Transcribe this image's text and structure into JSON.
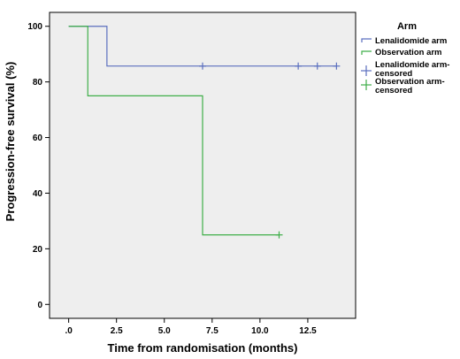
{
  "chart_data": {
    "type": "line",
    "step": true,
    "xlabel": "Time from randomisation (months)",
    "ylabel": "Progression-free survival (%)",
    "xlim": [
      -1,
      15
    ],
    "ylim": [
      -5,
      105
    ],
    "xticks": [
      0,
      2.5,
      5,
      7.5,
      10,
      12.5
    ],
    "xtick_labels": [
      ".0",
      "2.5",
      "5.0",
      "7.5",
      "10.0",
      "12.5"
    ],
    "yticks": [
      0,
      20,
      40,
      60,
      80,
      100
    ],
    "ytick_labels": [
      "0",
      "20",
      "40",
      "60",
      "80",
      "100"
    ],
    "grid": false,
    "legend_position": "right",
    "legend_title": "Arm",
    "legend_labels": {
      "lenalidomide": "Lenalidomide arm",
      "observation": "Observation arm",
      "lenalidomide_censored": [
        "Lenalidomide arm-",
        "censored"
      ],
      "observation_censored": [
        "Observation arm-",
        "censored"
      ]
    },
    "series": [
      {
        "name": "Lenalidomide arm",
        "color": "#5b6fbf",
        "x": [
          0,
          2,
          2,
          14
        ],
        "y": [
          100,
          100,
          85.7,
          85.7
        ],
        "censored": [
          [
            7,
            85.7
          ],
          [
            12,
            85.7
          ],
          [
            13,
            85.7
          ],
          [
            14,
            85.7
          ]
        ]
      },
      {
        "name": "Observation arm",
        "color": "#3fae49",
        "x": [
          0,
          1,
          1,
          7,
          7,
          11
        ],
        "y": [
          100,
          100,
          75,
          75,
          25,
          25
        ],
        "censored": [
          [
            11,
            25
          ]
        ]
      }
    ],
    "plot_background": "#eeeeee"
  }
}
